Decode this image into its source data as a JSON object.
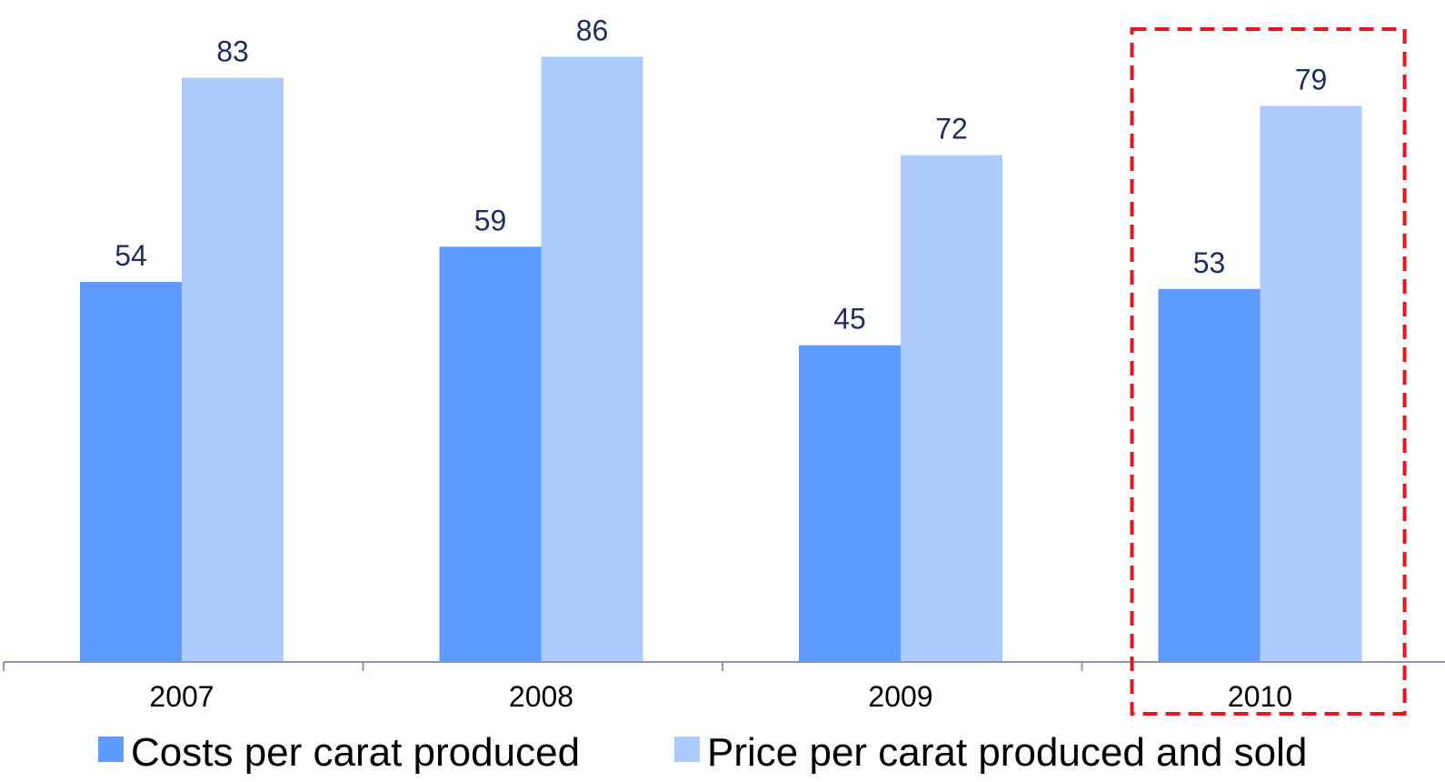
{
  "chart_data": {
    "type": "bar",
    "categories": [
      "2007",
      "2008",
      "2009",
      "2010"
    ],
    "series": [
      {
        "name": "Costs per carat produced",
        "values": [
          54,
          59,
          45,
          53
        ],
        "color": "#5e9bff"
      },
      {
        "name": "Price per carat produced and sold",
        "values": [
          83,
          86,
          72,
          79
        ],
        "color": "#adcbfc"
      }
    ],
    "ylim": [
      0,
      86
    ],
    "grid": false,
    "legend_position": "bottom",
    "highlight_category": "2010",
    "highlight_color": "#e8141e",
    "axis_color": "#8c96b4",
    "label_color": "#1f2d5c"
  }
}
